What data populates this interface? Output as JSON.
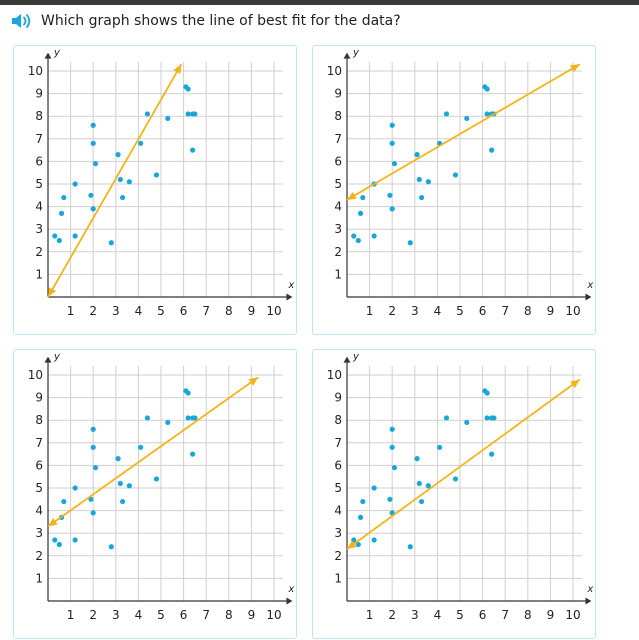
{
  "question": {
    "text": "Which graph shows the line of best fit for the data?",
    "audio_icon": "speaker-icon"
  },
  "colors": {
    "point": "#1aa7d8",
    "line": "#f2b418",
    "grid": "#cfcfcf",
    "axis": "#333333",
    "card_border": "#bfe6f3"
  },
  "chart_data": [
    {
      "type": "scatter",
      "xlabel": "x",
      "ylabel": "y",
      "xlim": [
        0,
        10
      ],
      "ylim": [
        0,
        10
      ],
      "x_ticks": [
        "1",
        "2",
        "3",
        "4",
        "5",
        "6",
        "7",
        "8",
        "9",
        "10"
      ],
      "y_ticks": [
        "1",
        "2",
        "3",
        "4",
        "5",
        "6",
        "7",
        "8",
        "9",
        "10"
      ],
      "grid": true,
      "points": [
        [
          0.3,
          2.7
        ],
        [
          0.5,
          2.5
        ],
        [
          0.6,
          3.7
        ],
        [
          0.7,
          4.4
        ],
        [
          1.2,
          2.7
        ],
        [
          1.2,
          5.0
        ],
        [
          1.9,
          4.5
        ],
        [
          2.0,
          7.6
        ],
        [
          2.0,
          6.8
        ],
        [
          2.0,
          3.9
        ],
        [
          2.1,
          5.9
        ],
        [
          2.8,
          2.4
        ],
        [
          3.1,
          6.3
        ],
        [
          3.2,
          5.2
        ],
        [
          3.3,
          4.4
        ],
        [
          3.6,
          5.1
        ],
        [
          4.1,
          6.8
        ],
        [
          4.4,
          8.1
        ],
        [
          4.8,
          5.4
        ],
        [
          5.3,
          7.9
        ],
        [
          6.1,
          9.3
        ],
        [
          6.2,
          9.2
        ],
        [
          6.2,
          8.1
        ],
        [
          6.4,
          8.1
        ],
        [
          6.5,
          8.1
        ],
        [
          6.4,
          6.5
        ]
      ],
      "line": {
        "from": [
          0,
          0
        ],
        "to": [
          5.9,
          10.3
        ]
      }
    },
    {
      "type": "scatter",
      "xlabel": "x",
      "ylabel": "y",
      "xlim": [
        0,
        10
      ],
      "ylim": [
        0,
        10
      ],
      "x_ticks": [
        "1",
        "2",
        "3",
        "4",
        "5",
        "6",
        "7",
        "8",
        "9",
        "10"
      ],
      "y_ticks": [
        "1",
        "2",
        "3",
        "4",
        "5",
        "6",
        "7",
        "8",
        "9",
        "10"
      ],
      "grid": true,
      "points": [
        [
          0.3,
          2.7
        ],
        [
          0.5,
          2.5
        ],
        [
          0.6,
          3.7
        ],
        [
          0.7,
          4.4
        ],
        [
          1.2,
          2.7
        ],
        [
          1.2,
          5.0
        ],
        [
          1.9,
          4.5
        ],
        [
          2.0,
          7.6
        ],
        [
          2.0,
          6.8
        ],
        [
          2.0,
          3.9
        ],
        [
          2.1,
          5.9
        ],
        [
          2.8,
          2.4
        ],
        [
          3.1,
          6.3
        ],
        [
          3.2,
          5.2
        ],
        [
          3.3,
          4.4
        ],
        [
          3.6,
          5.1
        ],
        [
          4.1,
          6.8
        ],
        [
          4.4,
          8.1
        ],
        [
          4.8,
          5.4
        ],
        [
          5.3,
          7.9
        ],
        [
          6.1,
          9.3
        ],
        [
          6.2,
          9.2
        ],
        [
          6.2,
          8.1
        ],
        [
          6.4,
          8.1
        ],
        [
          6.5,
          8.1
        ],
        [
          6.4,
          6.5
        ]
      ],
      "line": {
        "from": [
          0,
          4.3
        ],
        "to": [
          10.3,
          10.3
        ]
      }
    },
    {
      "type": "scatter",
      "xlabel": "x",
      "ylabel": "y",
      "xlim": [
        0,
        10
      ],
      "ylim": [
        0,
        10
      ],
      "x_ticks": [
        "1",
        "2",
        "3",
        "4",
        "5",
        "6",
        "7",
        "8",
        "9",
        "10"
      ],
      "y_ticks": [
        "1",
        "2",
        "3",
        "4",
        "5",
        "6",
        "7",
        "8",
        "9",
        "10"
      ],
      "grid": true,
      "points": [
        [
          0.3,
          2.7
        ],
        [
          0.5,
          2.5
        ],
        [
          0.6,
          3.7
        ],
        [
          0.7,
          4.4
        ],
        [
          1.2,
          2.7
        ],
        [
          1.2,
          5.0
        ],
        [
          1.9,
          4.5
        ],
        [
          2.0,
          7.6
        ],
        [
          2.0,
          6.8
        ],
        [
          2.0,
          3.9
        ],
        [
          2.1,
          5.9
        ],
        [
          2.8,
          2.4
        ],
        [
          3.1,
          6.3
        ],
        [
          3.2,
          5.2
        ],
        [
          3.3,
          4.4
        ],
        [
          3.6,
          5.1
        ],
        [
          4.1,
          6.8
        ],
        [
          4.4,
          8.1
        ],
        [
          4.8,
          5.4
        ],
        [
          5.3,
          7.9
        ],
        [
          6.1,
          9.3
        ],
        [
          6.2,
          9.2
        ],
        [
          6.2,
          8.1
        ],
        [
          6.4,
          8.1
        ],
        [
          6.5,
          8.1
        ],
        [
          6.4,
          6.5
        ]
      ],
      "line": {
        "from": [
          0,
          3.3
        ],
        "to": [
          9.3,
          9.9
        ]
      }
    },
    {
      "type": "scatter",
      "xlabel": "x",
      "ylabel": "y",
      "xlim": [
        0,
        10
      ],
      "ylim": [
        0,
        10
      ],
      "x_ticks": [
        "1",
        "2",
        "3",
        "4",
        "5",
        "6",
        "7",
        "8",
        "9",
        "10"
      ],
      "y_ticks": [
        "1",
        "2",
        "3",
        "4",
        "5",
        "6",
        "7",
        "8",
        "9",
        "10"
      ],
      "grid": true,
      "points": [
        [
          0.3,
          2.7
        ],
        [
          0.5,
          2.5
        ],
        [
          0.6,
          3.7
        ],
        [
          0.7,
          4.4
        ],
        [
          1.2,
          2.7
        ],
        [
          1.2,
          5.0
        ],
        [
          1.9,
          4.5
        ],
        [
          2.0,
          7.6
        ],
        [
          2.0,
          6.8
        ],
        [
          2.0,
          3.9
        ],
        [
          2.1,
          5.9
        ],
        [
          2.8,
          2.4
        ],
        [
          3.1,
          6.3
        ],
        [
          3.2,
          5.2
        ],
        [
          3.3,
          4.4
        ],
        [
          3.6,
          5.1
        ],
        [
          4.1,
          6.8
        ],
        [
          4.4,
          8.1
        ],
        [
          4.8,
          5.4
        ],
        [
          5.3,
          7.9
        ],
        [
          6.1,
          9.3
        ],
        [
          6.2,
          9.2
        ],
        [
          6.2,
          8.1
        ],
        [
          6.4,
          8.1
        ],
        [
          6.5,
          8.1
        ],
        [
          6.4,
          6.5
        ]
      ],
      "line": {
        "from": [
          0,
          2.3
        ],
        "to": [
          10.3,
          9.8
        ]
      }
    }
  ]
}
